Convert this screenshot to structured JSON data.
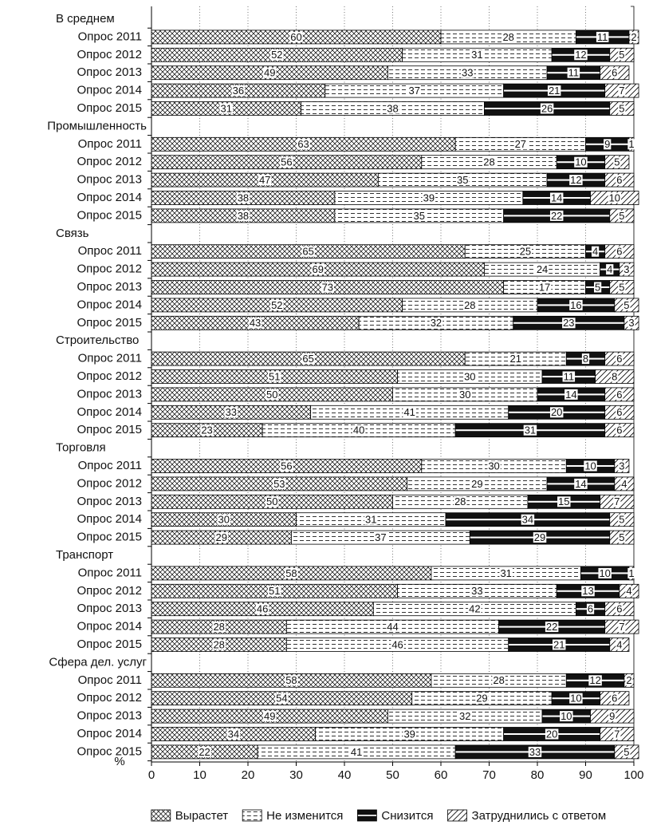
{
  "chart_data": {
    "type": "stacked-barh",
    "categories": [
      "В среднем",
      "Опрос 2011",
      "Опрос 2012",
      "Опрос 2013",
      "Опрос 2014",
      "Опрос 2015",
      "Промышленность",
      "Опрос 2011",
      "Опрос 2012",
      "Опрос 2013",
      "Опрос 2014",
      "Опрос 2015",
      "Связь",
      "Опрос 2011",
      "Опрос 2012",
      "Опрос 2013",
      "Опрос 2014",
      "Опрос 2015",
      "Строительство",
      "Опрос 2011",
      "Опрос 2012",
      "Опрос 2013",
      "Опрос 2014",
      "Опрос 2015",
      "Торговля",
      "Опрос 2011",
      "Опрос 2012",
      "Опрос 2013",
      "Опрос 2014",
      "Опрос 2015",
      "Транспорт",
      "Опрос 2011",
      "Опрос 2012",
      "Опрос 2013",
      "Опрос 2014",
      "Опрос 2015",
      "Сфера дел. услуг",
      "Опрос 2011",
      "Опрос 2012",
      "Опрос 2013",
      "Опрос 2014",
      "Опрос 2015"
    ],
    "series": [
      {
        "name": "Вырастет",
        "pattern": "crosshatch",
        "values": [
          null,
          60,
          52,
          49,
          36,
          31,
          null,
          63,
          56,
          47,
          38,
          38,
          null,
          65,
          69,
          73,
          52,
          43,
          null,
          65,
          51,
          50,
          33,
          23,
          null,
          56,
          53,
          50,
          30,
          29,
          null,
          58,
          51,
          46,
          28,
          28,
          null,
          58,
          54,
          49,
          34,
          22
        ]
      },
      {
        "name": "Не изменится",
        "pattern": "dashes",
        "values": [
          null,
          28,
          31,
          33,
          37,
          38,
          null,
          27,
          28,
          35,
          39,
          35,
          null,
          25,
          24,
          17,
          28,
          32,
          null,
          21,
          30,
          30,
          41,
          40,
          null,
          30,
          29,
          28,
          31,
          37,
          null,
          31,
          33,
          42,
          44,
          46,
          null,
          28,
          29,
          32,
          39,
          41
        ]
      },
      {
        "name": "Снизится",
        "pattern": "black-stripe",
        "values": [
          null,
          11,
          12,
          11,
          21,
          26,
          null,
          9,
          10,
          12,
          14,
          22,
          null,
          4,
          4,
          5,
          16,
          23,
          null,
          8,
          11,
          14,
          20,
          31,
          null,
          10,
          14,
          15,
          34,
          29,
          null,
          10,
          13,
          6,
          22,
          21,
          null,
          12,
          10,
          10,
          20,
          33
        ]
      },
      {
        "name": "Затруднились с ответом",
        "pattern": "diagonal",
        "values": [
          null,
          2,
          5,
          6,
          7,
          5,
          null,
          1,
          5,
          6,
          10,
          5,
          null,
          6,
          3,
          5,
          5,
          3,
          null,
          6,
          8,
          6,
          6,
          6,
          null,
          3,
          4,
          7,
          5,
          5,
          null,
          1,
          4,
          6,
          7,
          4,
          null,
          2,
          6,
          9,
          7,
          5
        ]
      }
    ],
    "xlabel": "%",
    "xlim": [
      0,
      100
    ],
    "xticks": [
      0,
      10,
      20,
      30,
      40,
      50,
      60,
      70,
      80,
      90,
      100
    ],
    "grid": true
  }
}
